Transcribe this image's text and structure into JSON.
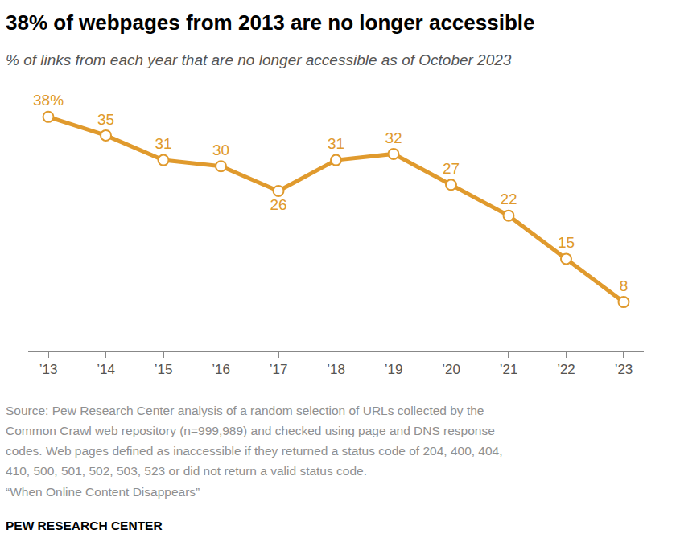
{
  "chart_data": {
    "type": "line",
    "title": "38% of webpages from 2013 are no longer accessible",
    "subtitle": "% of links from each year that are no longer accessible as of October 2023",
    "categories": [
      "’13",
      "’14",
      "’15",
      "’16",
      "’17",
      "’18",
      "’19",
      "’20",
      "’21",
      "’22",
      "’23"
    ],
    "values": [
      38,
      35,
      31,
      30,
      26,
      31,
      32,
      27,
      22,
      15,
      8
    ],
    "value_labels": [
      "38%",
      "35",
      "31",
      "30",
      "26",
      "31",
      "32",
      "27",
      "22",
      "15",
      "8"
    ],
    "data_labels": true,
    "color": "#e09a2d",
    "marker": "circle",
    "ylim": [
      0,
      40
    ],
    "grid": false,
    "tick_labels": "x",
    "notes": [
      "Source: Pew Research Center analysis of a random selection of URLs collected by the",
      "Common Crawl web repository (n=999,989) and checked using page and DNS response",
      "codes. Web pages defined as inaccessible if they returned a status code of 204, 400, 404,",
      "410, 500, 501, 502, 503, 523 or did not return a valid status code.",
      "“When Online Content Disappears”"
    ],
    "footer": "PEW RESEARCH CENTER"
  }
}
